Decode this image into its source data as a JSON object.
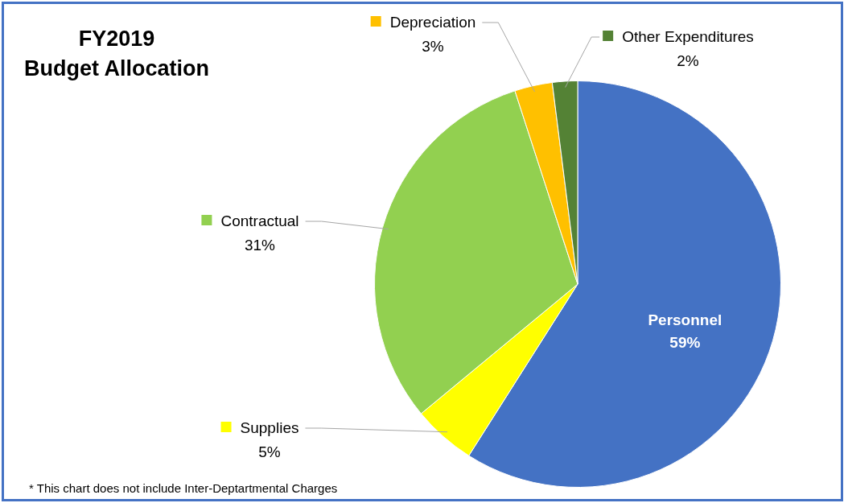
{
  "chart_data": {
    "type": "pie",
    "title": "FY2019\nBudget Allocation",
    "categories": [
      "Personnel",
      "Supplies",
      "Contractual",
      "Depreciation",
      "Other Expenditures"
    ],
    "values": [
      59,
      5,
      31,
      3,
      2
    ],
    "colors": [
      "#4472c4",
      "#ffff00",
      "#92d050",
      "#ffc000",
      "#548235"
    ],
    "value_labels": [
      "59%",
      "5%",
      "31%",
      "3%",
      "2%"
    ],
    "legend": "left",
    "annotations": [
      "* This chart does not include Inter-Deptartmental Charges"
    ]
  }
}
